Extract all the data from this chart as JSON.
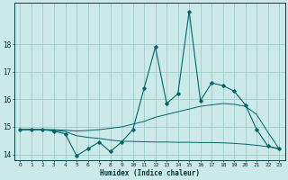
{
  "xlabel": "Humidex (Indice chaleur)",
  "background_color": "#cbe9e9",
  "grid_color": "#a0cccc",
  "line_color": "#006666",
  "x": [
    0,
    1,
    2,
    3,
    4,
    5,
    6,
    7,
    8,
    9,
    10,
    11,
    12,
    13,
    14,
    15,
    16,
    17,
    18,
    19,
    20,
    21,
    22,
    23
  ],
  "y_main": [
    14.9,
    14.9,
    14.9,
    14.85,
    14.75,
    13.95,
    14.2,
    14.45,
    14.1,
    14.45,
    14.9,
    16.4,
    17.9,
    15.85,
    16.2,
    19.2,
    15.95,
    16.6,
    16.5,
    16.3,
    15.8,
    14.9,
    14.3,
    14.2
  ],
  "y_upper": [
    14.9,
    14.9,
    14.9,
    14.9,
    14.88,
    14.85,
    14.87,
    14.9,
    14.95,
    15.0,
    15.1,
    15.2,
    15.35,
    15.45,
    15.55,
    15.65,
    15.75,
    15.8,
    15.85,
    15.82,
    15.75,
    15.45,
    14.8,
    14.2
  ],
  "y_lower": [
    14.9,
    14.9,
    14.9,
    14.88,
    14.83,
    14.68,
    14.62,
    14.58,
    14.52,
    14.48,
    14.47,
    14.46,
    14.45,
    14.45,
    14.44,
    14.44,
    14.43,
    14.43,
    14.42,
    14.4,
    14.37,
    14.33,
    14.28,
    14.2
  ],
  "ylim": [
    13.8,
    19.5
  ],
  "xlim": [
    -0.5,
    23.5
  ],
  "yticks": [
    14,
    15,
    16,
    17,
    18
  ],
  "xticks": [
    0,
    1,
    2,
    3,
    4,
    5,
    6,
    7,
    8,
    9,
    10,
    11,
    12,
    13,
    14,
    15,
    16,
    17,
    18,
    19,
    20,
    21,
    22,
    23
  ]
}
